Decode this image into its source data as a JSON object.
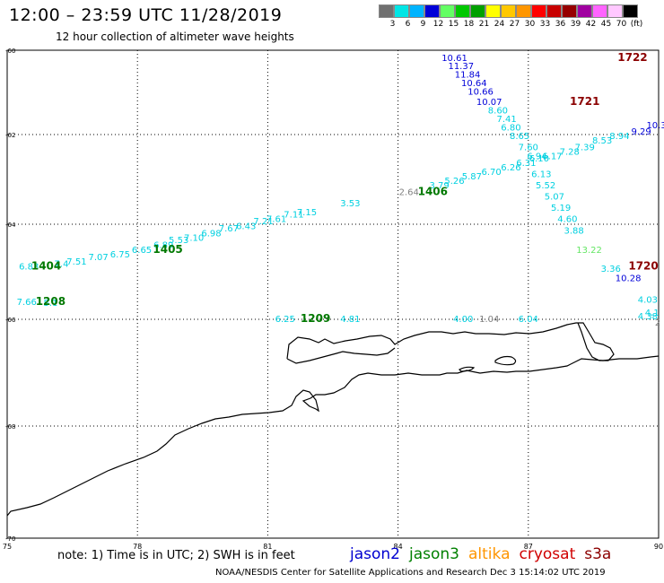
{
  "header": {
    "title": "12:00 – 23:59 UTC 11/28/2019",
    "subtitle": "12 hour collection of altimeter wave heights"
  },
  "legend": {
    "colors": [
      "#707070",
      "#00e5e5",
      "#00b4ff",
      "#0000d8",
      "#64ff64",
      "#00c800",
      "#00a000",
      "#ffff00",
      "#ffc800",
      "#ff9600",
      "#ff0000",
      "#c80000",
      "#960000",
      "#a000a0",
      "#ff64ff",
      "#ffc8ff",
      "#000000"
    ],
    "ticks": [
      "3",
      "6",
      "9",
      "12",
      "15",
      "18",
      "21",
      "24",
      "27",
      "30",
      "33",
      "36",
      "39",
      "42",
      "45",
      "70",
      "(ft)"
    ]
  },
  "axes": {
    "lon_ticks": [
      "75",
      "78",
      "81",
      "84",
      "87",
      "90"
    ],
    "lat_ticks": [
      "-60",
      "-62",
      "-64",
      "-66",
      "-68",
      "-70"
    ]
  },
  "pass_labels": [
    {
      "text": "1722",
      "lon": 89.4,
      "lat": -60.25,
      "color": "#8b0000"
    },
    {
      "text": "1721",
      "lon": 88.3,
      "lat": -61.3,
      "color": "#8b0000"
    },
    {
      "text": "1406",
      "lon": 84.8,
      "lat": -63.35,
      "color": "#007800"
    },
    {
      "text": "1405",
      "lon": 78.7,
      "lat": -64.6,
      "color": "#007800"
    },
    {
      "text": "1404",
      "lon": 75.9,
      "lat": -64.95,
      "color": "#007800"
    },
    {
      "text": "1208",
      "lon": 76.0,
      "lat": -65.7,
      "color": "#007800"
    },
    {
      "text": "1209",
      "lon": 82.1,
      "lat": -66.05,
      "color": "#007800"
    },
    {
      "text": "1720",
      "lon": 89.65,
      "lat": -64.95,
      "color": "#8b0000"
    }
  ],
  "wave_values": [
    {
      "text": "10.61",
      "lon": 85.3,
      "lat": -60.25,
      "color": "#0000d8"
    },
    {
      "text": "11.37",
      "lon": 85.45,
      "lat": -60.45,
      "color": "#0000d8"
    },
    {
      "text": "11.84",
      "lon": 85.6,
      "lat": -60.65,
      "color": "#0000d8"
    },
    {
      "text": "10.64",
      "lon": 85.75,
      "lat": -60.85,
      "color": "#0000d8"
    },
    {
      "text": "10.66",
      "lon": 85.9,
      "lat": -61.05,
      "color": "#0000d8"
    },
    {
      "text": "10.07",
      "lon": 86.1,
      "lat": -61.3,
      "color": "#0000d8"
    },
    {
      "text": "8.60",
      "lon": 86.3,
      "lat": -61.5,
      "color": "#00d0e0"
    },
    {
      "text": "7.41",
      "lon": 86.5,
      "lat": -61.7,
      "color": "#00d0e0"
    },
    {
      "text": "6.80",
      "lon": 86.6,
      "lat": -61.9,
      "color": "#00d0e0"
    },
    {
      "text": "8.65",
      "lon": 86.8,
      "lat": -62.1,
      "color": "#00d0e0"
    },
    {
      "text": "7.60",
      "lon": 87.0,
      "lat": -62.35,
      "color": "#00d0e0"
    },
    {
      "text": "6.94",
      "lon": 87.2,
      "lat": -62.55,
      "color": "#00d0e0"
    },
    {
      "text": "6.13",
      "lon": 87.3,
      "lat": -62.95,
      "color": "#00d0e0"
    },
    {
      "text": "5.52",
      "lon": 87.4,
      "lat": -63.2,
      "color": "#00d0e0"
    },
    {
      "text": "5.07",
      "lon": 87.6,
      "lat": -63.45,
      "color": "#00d0e0"
    },
    {
      "text": "5.19",
      "lon": 87.75,
      "lat": -63.7,
      "color": "#00d0e0"
    },
    {
      "text": "4.60",
      "lon": 87.9,
      "lat": -63.95,
      "color": "#00d0e0"
    },
    {
      "text": "3.88",
      "lon": 88.05,
      "lat": -64.2,
      "color": "#00d0e0"
    },
    {
      "text": "13.22",
      "lon": 88.4,
      "lat": -64.6,
      "color": "#64e664"
    },
    {
      "text": "3.36",
      "lon": 88.9,
      "lat": -65.0,
      "color": "#00d0e0"
    },
    {
      "text": "10.28",
      "lon": 89.3,
      "lat": -65.2,
      "color": "#0000d8"
    },
    {
      "text": "10.3",
      "lon": 89.95,
      "lat": -61.85,
      "color": "#0000d8"
    },
    {
      "text": "9.29",
      "lon": 89.6,
      "lat": -62.0,
      "color": "#0000d8"
    },
    {
      "text": "8.94",
      "lon": 89.1,
      "lat": -62.1,
      "color": "#00d0e0"
    },
    {
      "text": "8.53",
      "lon": 88.7,
      "lat": -62.2,
      "color": "#00d0e0"
    },
    {
      "text": "7.39",
      "lon": 88.3,
      "lat": -62.35,
      "color": "#00d0e0"
    },
    {
      "text": "7.28",
      "lon": 87.95,
      "lat": -62.45,
      "color": "#00d0e0"
    },
    {
      "text": "6.17",
      "lon": 87.55,
      "lat": -62.55,
      "color": "#00d0e0"
    },
    {
      "text": "6.10",
      "lon": 87.25,
      "lat": -62.6,
      "color": "#00d0e0"
    },
    {
      "text": "6.31",
      "lon": 86.95,
      "lat": -62.7,
      "color": "#00d0e0"
    },
    {
      "text": "6.26",
      "lon": 86.6,
      "lat": -62.8,
      "color": "#00d0e0"
    },
    {
      "text": "6.70",
      "lon": 86.15,
      "lat": -62.9,
      "color": "#00d0e0"
    },
    {
      "text": "5.87",
      "lon": 85.7,
      "lat": -63.0,
      "color": "#00d0e0"
    },
    {
      "text": "5.26",
      "lon": 85.3,
      "lat": -63.1,
      "color": "#00d0e0"
    },
    {
      "text": "3.79",
      "lon": 84.95,
      "lat": -63.2,
      "color": "#00d0e0"
    },
    {
      "text": "2.64",
      "lon": 84.25,
      "lat": -63.35,
      "color": "#808080"
    },
    {
      "text": "3.53",
      "lon": 82.9,
      "lat": -63.6,
      "color": "#00d0e0"
    },
    {
      "text": "7.15",
      "lon": 81.9,
      "lat": -63.8,
      "color": "#00d0e0"
    },
    {
      "text": "7.11",
      "lon": 81.6,
      "lat": -63.85,
      "color": "#00d0e0"
    },
    {
      "text": "7.61",
      "lon": 81.2,
      "lat": -63.95,
      "color": "#00d0e0"
    },
    {
      "text": "7.21",
      "lon": 80.9,
      "lat": -64.0,
      "color": "#00d0e0"
    },
    {
      "text": "6.43",
      "lon": 80.5,
      "lat": -64.1,
      "color": "#00d0e0"
    },
    {
      "text": "7.67",
      "lon": 80.1,
      "lat": -64.15,
      "color": "#00d0e0"
    },
    {
      "text": "6.98",
      "lon": 79.7,
      "lat": -64.25,
      "color": "#00d0e0"
    },
    {
      "text": "7.10",
      "lon": 79.3,
      "lat": -64.35,
      "color": "#00d0e0"
    },
    {
      "text": "5.53",
      "lon": 78.95,
      "lat": -64.4,
      "color": "#00d0e0"
    },
    {
      "text": "6.89",
      "lon": 78.6,
      "lat": -64.5,
      "color": "#00d0e0"
    },
    {
      "text": "6.65",
      "lon": 78.1,
      "lat": -64.6,
      "color": "#00d0e0"
    },
    {
      "text": "6.75",
      "lon": 77.6,
      "lat": -64.7,
      "color": "#00d0e0"
    },
    {
      "text": "7.07",
      "lon": 77.1,
      "lat": -64.75,
      "color": "#00d0e0"
    },
    {
      "text": "7.51",
      "lon": 76.6,
      "lat": -64.85,
      "color": "#00d0e0"
    },
    {
      "text": "7.4",
      "lon": 76.25,
      "lat": -64.9,
      "color": "#00d0e0"
    },
    {
      "text": "6.83",
      "lon": 75.5,
      "lat": -64.95,
      "color": "#00d0e0"
    },
    {
      "text": "7.66",
      "lon": 75.45,
      "lat": -65.7,
      "color": "#00d0e0"
    },
    {
      "text": "5.1",
      "lon": 76.0,
      "lat": -65.72,
      "color": "#00d0e0"
    },
    {
      "text": "6.25",
      "lon": 81.4,
      "lat": -66.05,
      "color": "#00d0e0"
    },
    {
      "text": "4.81",
      "lon": 82.9,
      "lat": -66.05,
      "color": "#00d0e0"
    },
    {
      "text": "4.00",
      "lon": 85.5,
      "lat": -66.05,
      "color": "#00d0e0"
    },
    {
      "text": "1.04",
      "lon": 86.1,
      "lat": -66.05,
      "color": "#808080"
    },
    {
      "text": "6.04",
      "lon": 87.0,
      "lat": -66.05,
      "color": "#00d0e0"
    },
    {
      "text": "4.03",
      "lon": 89.75,
      "lat": -65.65,
      "color": "#00d0e0"
    },
    {
      "text": "4.1",
      "lon": 89.85,
      "lat": -65.92,
      "color": "#00d0e0"
    },
    {
      "text": "4.38",
      "lon": 89.75,
      "lat": -66.0,
      "color": "#00d0e0"
    },
    {
      "text": "2",
      "lon": 89.98,
      "lat": -66.12,
      "color": "#808080"
    }
  ],
  "footer": {
    "note": "note:  1) Time is in UTC;  2) SWH is in feet",
    "satellites": [
      {
        "name": "jason2",
        "color": "#0000d0"
      },
      {
        "name": "jason3",
        "color": "#008000"
      },
      {
        "name": "altika",
        "color": "#ff9600"
      },
      {
        "name": "cryosat",
        "color": "#d00000"
      },
      {
        "name": "s3a",
        "color": "#8b0000"
      }
    ],
    "credit": "NOAA/NESDIS Center for Satellite Applications and Research     Dec  3 15:14:02 UTC 2019"
  }
}
